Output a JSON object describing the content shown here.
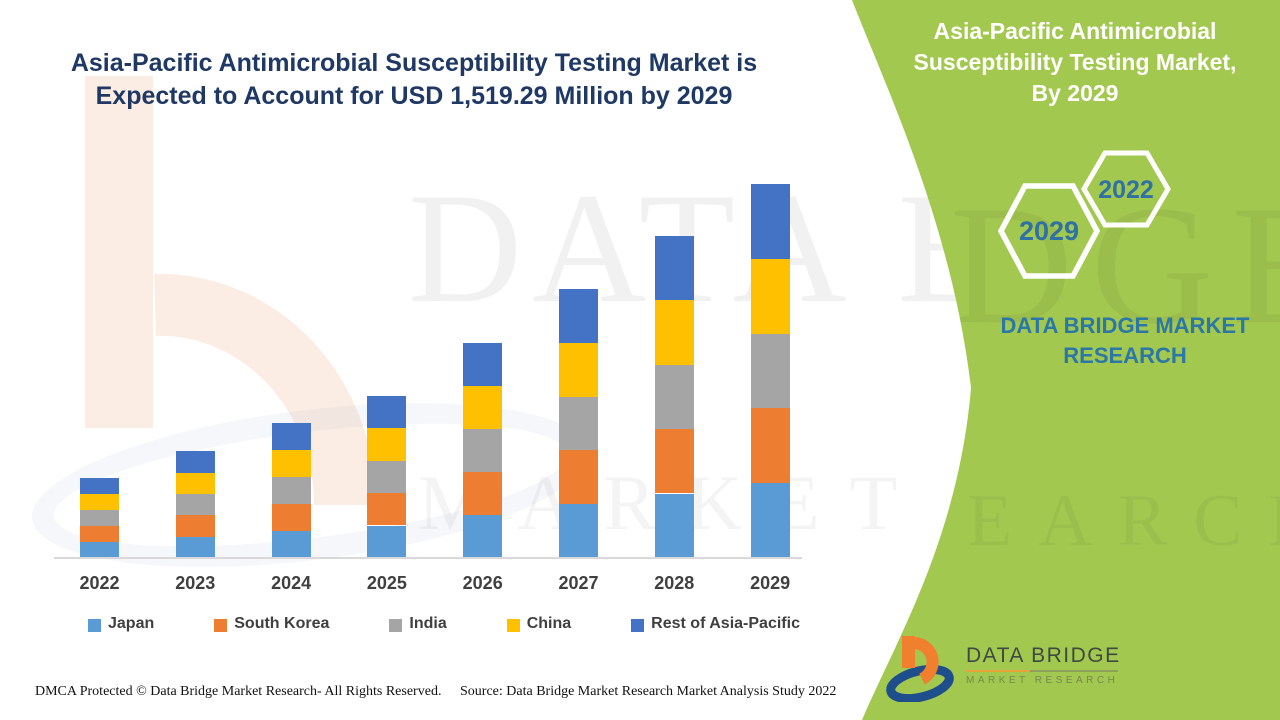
{
  "header": {
    "title_line1": "Asia-Pacific Antimicrobial Susceptibility Testing Market is",
    "title_line2": "Expected to Account for USD 1,519.29 Million by 2029",
    "title_color": "#1F3864"
  },
  "side_panel": {
    "bg_color": "#A3C850",
    "title_lines": [
      "Asia-Pacific Antimicrobial",
      "Susceptibility Testing Market,",
      "By 2029"
    ],
    "hexagons": [
      {
        "label": "2022"
      },
      {
        "label": "2029"
      }
    ],
    "hex_text_color": "#2E71A2",
    "brand_line1": "DATA BRIDGE MARKET",
    "brand_line2": "RESEARCH",
    "brand_color": "#2B77A6"
  },
  "chart_data": {
    "type": "bar",
    "stacked": true,
    "unit": "USD Million",
    "categories": [
      "2022",
      "2023",
      "2024",
      "2025",
      "2026",
      "2027",
      "2028",
      "2029"
    ],
    "series": [
      {
        "name": "Japan",
        "color": "#5B9BD5",
        "values": [
          64.6,
          86.8,
          109.8,
          132.0,
          174.4,
          218.6,
          262.0,
          303.86
        ]
      },
      {
        "name": "South Korea",
        "color": "#ED7D31",
        "values": [
          64.6,
          86.8,
          109.8,
          132.0,
          174.4,
          218.6,
          262.0,
          303.86
        ]
      },
      {
        "name": "India",
        "color": "#A5A5A5",
        "values": [
          64.6,
          86.8,
          109.8,
          132.0,
          174.4,
          218.6,
          262.0,
          303.86
        ]
      },
      {
        "name": "China",
        "color": "#FFC000",
        "values": [
          64.6,
          86.8,
          109.8,
          132.0,
          174.4,
          218.6,
          262.0,
          303.86
        ]
      },
      {
        "name": "Rest of Asia-Pacific",
        "color": "#4472C4",
        "values": [
          64.6,
          86.8,
          109.8,
          132.0,
          174.4,
          218.6,
          262.0,
          303.86
        ]
      }
    ],
    "totals_estimated": [
      323,
      434,
      549,
      660,
      872,
      1093,
      1310,
      1519.29
    ],
    "xlabel": "",
    "ylabel": "",
    "ylim": [
      0,
      1519.29
    ],
    "grid": false,
    "legend_position": "bottom"
  },
  "watermark": {
    "line1": "DATA BRIDGE",
    "line2": "MARKET RESEARCH",
    "green_line1": "DGE",
    "green_line2": "SEARCH"
  },
  "logo": {
    "name": "DATA BRIDGE",
    "sub": "MARKET RESEARCH"
  },
  "footer": {
    "dmca": "DMCA Protected © Data Bridge Market Research- All Rights Reserved.",
    "source": "Source: Data Bridge Market Research Market Analysis Study 2022"
  }
}
